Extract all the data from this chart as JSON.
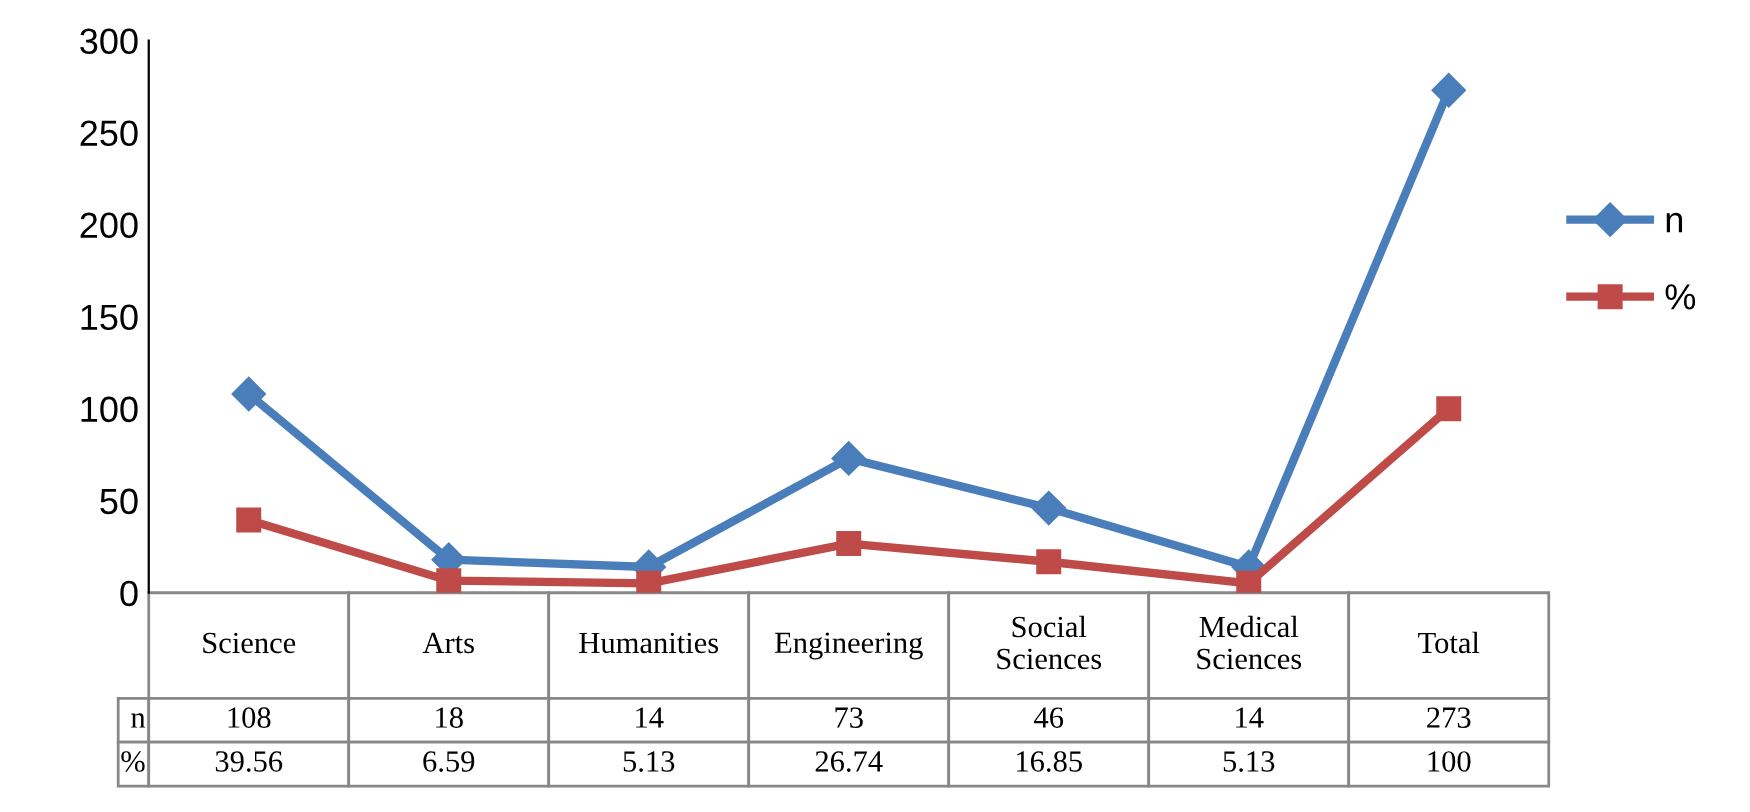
{
  "chart_data": {
    "type": "line",
    "categories": [
      "Science",
      "Arts",
      "Humanities",
      "Engineering",
      "Social Sciences",
      "Medical Sciences",
      "Total"
    ],
    "series": [
      {
        "name": "n",
        "color": "#4a7ebb",
        "marker": "diamond",
        "values": [
          108,
          18,
          14,
          73,
          46,
          14,
          273
        ]
      },
      {
        "name": "%",
        "color": "#be4b48",
        "marker": "square",
        "values": [
          39.56,
          6.59,
          5.13,
          26.74,
          16.85,
          5.13,
          100
        ]
      }
    ],
    "ylim": [
      0,
      300
    ],
    "yticks": [
      0,
      50,
      100,
      150,
      200,
      250,
      300
    ],
    "grid": false,
    "legend": "right",
    "data_labels": true
  }
}
